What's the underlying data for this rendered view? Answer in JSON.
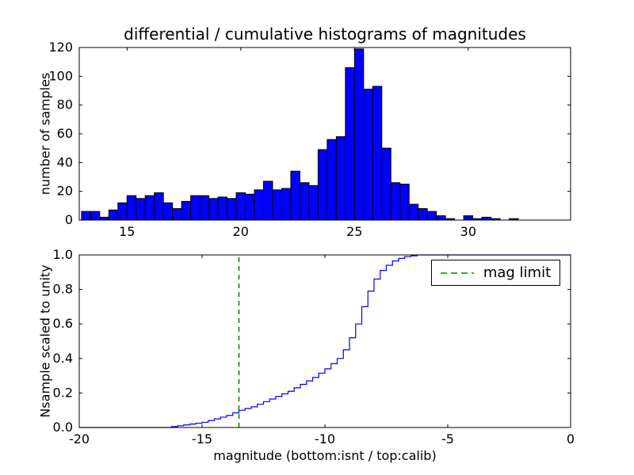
{
  "figure": {
    "title": "differential / cumulative histograms of magnitudes",
    "background_color": "#ffffff"
  },
  "chart_data": [
    {
      "id": "top",
      "type": "bar",
      "title": "",
      "ylabel": "number of samples",
      "bar_color": "#0000ff",
      "bar_edge_color": "#000000",
      "bin_start": 13.0,
      "bin_width": 0.4,
      "values": [
        6,
        6,
        2,
        7,
        12,
        17,
        15,
        17,
        19,
        12,
        8,
        13,
        17,
        17,
        15,
        16,
        15,
        19,
        18,
        21,
        27,
        21,
        22,
        34,
        26,
        24,
        49,
        56,
        58,
        106,
        119,
        91,
        93,
        50,
        26,
        25,
        11,
        8,
        6,
        3,
        1,
        0,
        3,
        1,
        2,
        1,
        0,
        1
      ],
      "xlim": [
        12.9,
        34.5
      ],
      "ylim": [
        0,
        120
      ],
      "xticks": [
        15,
        20,
        25,
        30
      ],
      "xticklabels": [
        "15",
        "20",
        "25",
        "30"
      ],
      "yticks": [
        0,
        20,
        40,
        60,
        80,
        100,
        120
      ],
      "yticklabels": [
        "0",
        "20",
        "40",
        "60",
        "80",
        "100",
        "120"
      ],
      "grid": false
    },
    {
      "id": "bottom",
      "type": "line",
      "step": true,
      "ylabel": "Nsample scaled to unity",
      "xlabel": "magnitude (bottom:isnt / top:calib)",
      "line_color": "#0000ff",
      "points": [
        [
          -20,
          0
        ],
        [
          -16.5,
          0
        ],
        [
          -16.25,
          0.005
        ],
        [
          -16,
          0.01
        ],
        [
          -15.75,
          0.015
        ],
        [
          -15.5,
          0.02
        ],
        [
          -15.25,
          0.025
        ],
        [
          -15,
          0.03
        ],
        [
          -14.75,
          0.04
        ],
        [
          -14.5,
          0.05
        ],
        [
          -14.25,
          0.06
        ],
        [
          -14,
          0.07
        ],
        [
          -13.75,
          0.085
        ],
        [
          -13.5,
          0.1
        ],
        [
          -13.25,
          0.11
        ],
        [
          -13,
          0.12
        ],
        [
          -12.75,
          0.135
        ],
        [
          -12.5,
          0.15
        ],
        [
          -12.25,
          0.165
        ],
        [
          -12,
          0.18
        ],
        [
          -11.75,
          0.195
        ],
        [
          -11.5,
          0.21
        ],
        [
          -11.25,
          0.23
        ],
        [
          -11,
          0.25
        ],
        [
          -10.75,
          0.27
        ],
        [
          -10.5,
          0.29
        ],
        [
          -10.25,
          0.315
        ],
        [
          -10,
          0.34
        ],
        [
          -9.75,
          0.37
        ],
        [
          -9.5,
          0.4
        ],
        [
          -9.25,
          0.45
        ],
        [
          -9,
          0.52
        ],
        [
          -8.75,
          0.6
        ],
        [
          -8.5,
          0.7
        ],
        [
          -8.25,
          0.79
        ],
        [
          -8,
          0.86
        ],
        [
          -7.75,
          0.91
        ],
        [
          -7.5,
          0.94
        ],
        [
          -7.25,
          0.965
        ],
        [
          -7,
          0.98
        ],
        [
          -6.75,
          0.99
        ],
        [
          -6.5,
          0.995
        ],
        [
          -6.25,
          1.0
        ],
        [
          0,
          1.0
        ]
      ],
      "xlim": [
        -20,
        0
      ],
      "ylim": [
        0,
        1.0
      ],
      "xticks": [
        -20,
        -15,
        -10,
        -5,
        0
      ],
      "xticklabels": [
        "-20",
        "-15",
        "-10",
        "-5",
        "0"
      ],
      "yticks": [
        0,
        0.2,
        0.4,
        0.6,
        0.8,
        1.0
      ],
      "yticklabels": [
        "0.0",
        "0.2",
        "0.4",
        "0.6",
        "0.8",
        "1.0"
      ],
      "vline": {
        "x": -13.5,
        "color": "#008000",
        "linestyle": "dashed",
        "label": "mag limit"
      },
      "legend": {
        "label": "mag limit",
        "position": "upper right"
      },
      "grid": false
    }
  ]
}
